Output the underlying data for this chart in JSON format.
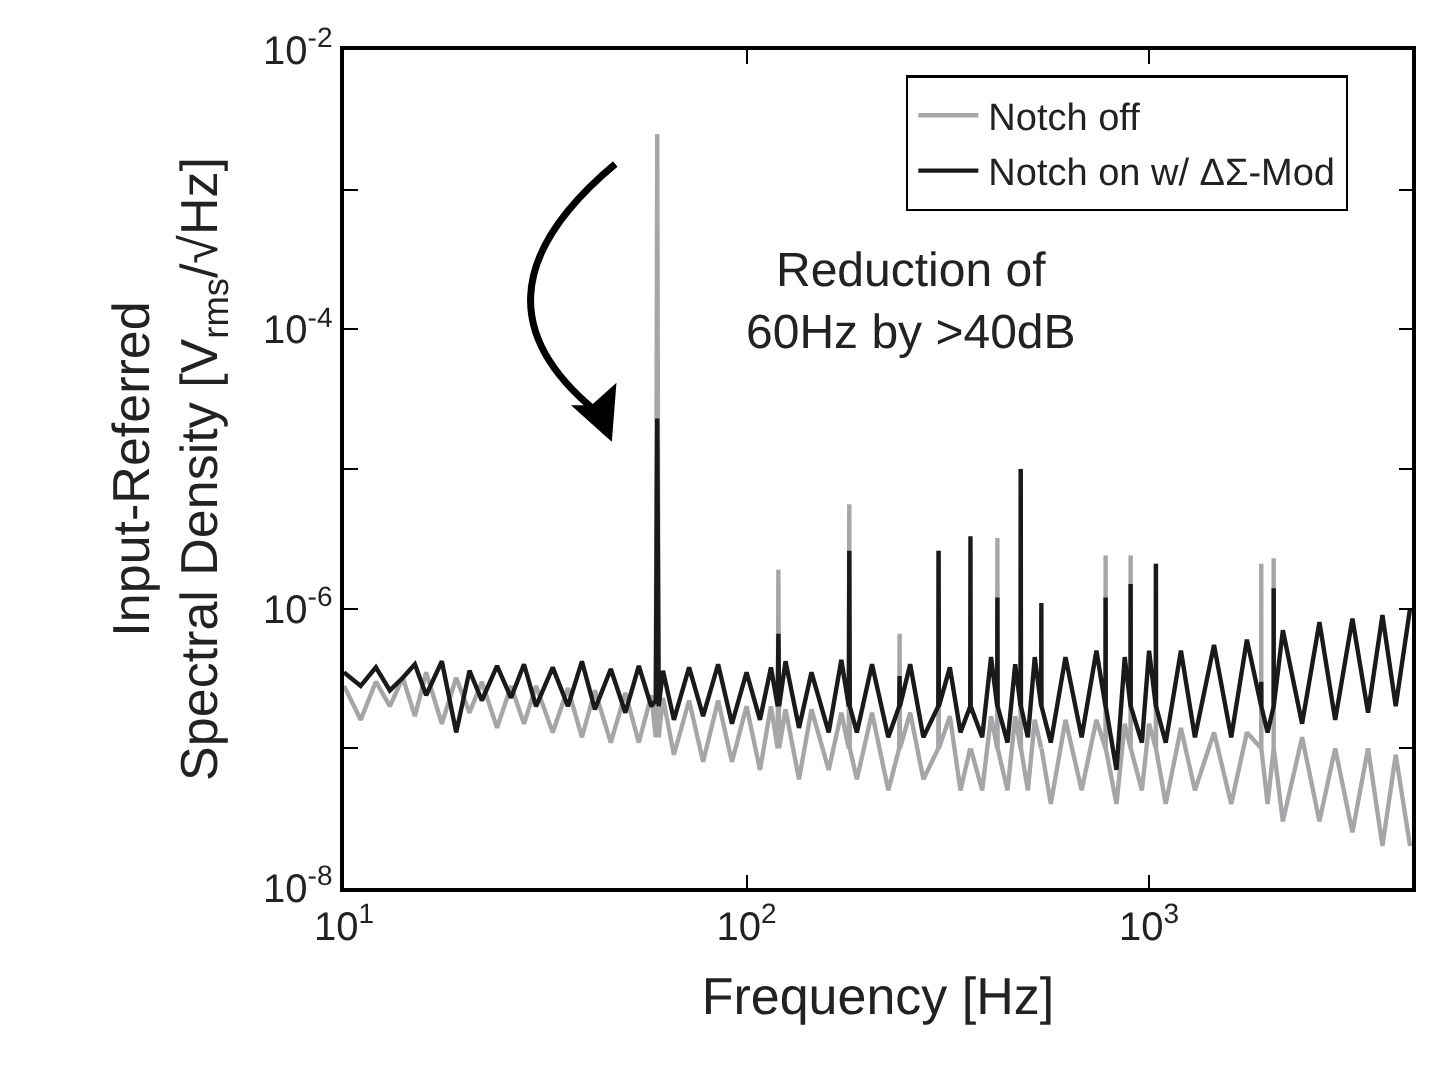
{
  "chart_data": {
    "type": "line",
    "xlabel": "Frequency [Hz]",
    "ylabel": "Input-Referred\nSpectral Density [V$_{rms}$/√Hz]",
    "annotations": [
      "Reduction of\n60Hz by >40dB"
    ],
    "log": "xy",
    "legend": "top right",
    "marker": "none",
    "line_style": "solid",
    "xlim": [
      10,
      4500
    ],
    "xticks": [
      {
        "value": 10,
        "label": "10$^{1}$"
      },
      {
        "value": 100,
        "label": "10$^{2}$"
      },
      {
        "value": 1000,
        "label": "10$^{3}$"
      }
    ],
    "ylim": [
      1e-08,
      0.01
    ],
    "yticks": [
      {
        "value": 1e-08,
        "label": "10$^{-8}$"
      },
      {
        "value": 1e-07,
        "label": null
      },
      {
        "value": 1e-06,
        "label": "10$^{-6}$"
      },
      {
        "value": 1e-05,
        "label": null
      },
      {
        "value": 0.0001,
        "label": "10$^{-4}$"
      },
      {
        "value": 0.001,
        "label": null
      },
      {
        "value": 0.01,
        "label": "10$^{-2}$"
      }
    ],
    "x": [
      10,
      11,
      12,
      13,
      14,
      15,
      16,
      17.5,
      19,
      20.5,
      22,
      24,
      26,
      28,
      30,
      33,
      36,
      39,
      42,
      46,
      50,
      54,
      58,
      59.5,
      60,
      60.5,
      62,
      66,
      72,
      78,
      85,
      92,
      100,
      108,
      115,
      119.5,
      120,
      120.5,
      125,
      135,
      145,
      160,
      172,
      179.5,
      180,
      180.5,
      188,
      205,
      225,
      239.5,
      240,
      240.5,
      255,
      275,
      299.5,
      300,
      300.5,
      320,
      340,
      359.5,
      360,
      360.5,
      385,
      405,
      419.5,
      420,
      420.5,
      445,
      465,
      479.5,
      480,
      480.5,
      500,
      520,
      539.5,
      540,
      540.5,
      570,
      620,
      680,
      740,
      779.5,
      780,
      780.5,
      830,
      870,
      899.5,
      900,
      900.5,
      960,
      1000,
      1039.5,
      1040,
      1040.5,
      1100,
      1200,
      1300,
      1450,
      1600,
      1750,
      1899.5,
      1900,
      1900.5,
      1970,
      2039.5,
      2040,
      2040.5,
      2150,
      2400,
      2650,
      2900,
      3200,
      3500,
      3800,
      4100,
      4450
    ],
    "series": [
      {
        "name": "Notch off",
        "color": "#a6a6a8",
        "values": [
          2.8e-07,
          1.6e-07,
          3e-07,
          2e-07,
          3.2e-07,
          1.7e-07,
          3.5e-07,
          1.5e-07,
          3.2e-07,
          1.8e-07,
          3e-07,
          1.4e-07,
          2.8e-07,
          1.5e-07,
          2.8e-07,
          1.3e-07,
          2.7e-07,
          1.2e-07,
          2.6e-07,
          1.1e-07,
          2.5e-07,
          1.1e-07,
          2.4e-07,
          1.2e-07,
          0.0025,
          1.2e-07,
          2.3e-07,
          9e-08,
          2.2e-07,
          8e-08,
          2.2e-07,
          8e-08,
          2e-07,
          7e-08,
          2e-07,
          1e-07,
          1.9e-06,
          1e-07,
          1.9e-07,
          6e-08,
          1.9e-07,
          7e-08,
          1.8e-07,
          1e-07,
          5.6e-06,
          1e-07,
          6e-08,
          1.8e-07,
          5e-08,
          1e-07,
          6.6e-07,
          1e-07,
          1.8e-07,
          6e-08,
          1e-07,
          2.6e-06,
          1e-07,
          1.7e-07,
          5e-08,
          1e-07,
          null,
          1e-07,
          5e-08,
          1.7e-07,
          1e-07,
          3.2e-06,
          1e-07,
          5e-08,
          1.7e-07,
          1e-07,
          1e-05,
          1e-07,
          5e-08,
          1.6e-07,
          1e-07,
          null,
          1e-07,
          4e-08,
          1.6e-07,
          5e-08,
          1.6e-07,
          1e-07,
          2.4e-06,
          1e-07,
          4e-08,
          1.5e-07,
          1e-07,
          2.4e-06,
          1e-07,
          5e-08,
          1.5e-07,
          1e-07,
          2.1e-06,
          1e-07,
          4e-08,
          1.4e-07,
          5e-08,
          1.3e-07,
          4e-08,
          1.3e-07,
          1e-07,
          2.1e-06,
          1e-07,
          4e-08,
          1e-07,
          2.3e-06,
          1e-07,
          3e-08,
          1.2e-07,
          3e-08,
          1e-07,
          2.5e-08,
          1e-07,
          2e-08,
          9e-08,
          2e-08
        ]
      },
      {
        "name": "Notch on w/ ΔΣ-Mod",
        "color": "#1a1a1a",
        "values": [
          3.5e-07,
          2.8e-07,
          3.8e-07,
          2.6e-07,
          3.2e-07,
          4e-07,
          2.4e-07,
          4.2e-07,
          1.3e-07,
          3.6e-07,
          2.2e-07,
          3.9e-07,
          2.3e-07,
          4e-07,
          2e-07,
          3.8e-07,
          2e-07,
          4.2e-07,
          1.9e-07,
          3.7e-07,
          1.8e-07,
          3.9e-07,
          2e-07,
          2.2e-07,
          2.3e-05,
          2e-07,
          3.6e-07,
          1.6e-07,
          3.8e-07,
          1.7e-07,
          4e-07,
          1.5e-07,
          3.5e-07,
          1.6e-07,
          3.8e-07,
          2e-07,
          6.6e-07,
          2e-07,
          4.2e-07,
          1.4e-07,
          3.5e-07,
          1.3e-07,
          4.3e-07,
          2e-07,
          2.6e-06,
          2e-07,
          1.3e-07,
          4e-07,
          1.2e-07,
          2e-07,
          3.3e-07,
          2e-07,
          4e-07,
          1.2e-07,
          2e-07,
          2.6e-06,
          2e-07,
          3.8e-07,
          1.3e-07,
          2e-07,
          3.3e-06,
          2e-07,
          1.2e-07,
          4.5e-07,
          2e-07,
          1.2e-06,
          2e-07,
          1.1e-07,
          4e-07,
          2e-07,
          1e-05,
          2e-07,
          1.2e-07,
          4.5e-07,
          2e-07,
          1.1e-06,
          2e-07,
          1.1e-07,
          4.5e-07,
          1.2e-07,
          5e-07,
          2e-07,
          1.2e-06,
          2e-07,
          7e-08,
          4.5e-07,
          2e-07,
          1.5e-06,
          2e-07,
          1.1e-07,
          5e-07,
          2e-07,
          2.1e-06,
          2e-07,
          1.1e-07,
          5e-07,
          1.2e-07,
          5.5e-07,
          1.2e-07,
          6e-07,
          2e-07,
          3e-07,
          2e-07,
          1.3e-07,
          2e-07,
          1.4e-06,
          2e-07,
          7e-07,
          1.5e-07,
          8e-07,
          1.6e-07,
          8.5e-07,
          1.8e-07,
          9e-07,
          2e-07,
          1e-06
        ]
      }
    ]
  }
}
